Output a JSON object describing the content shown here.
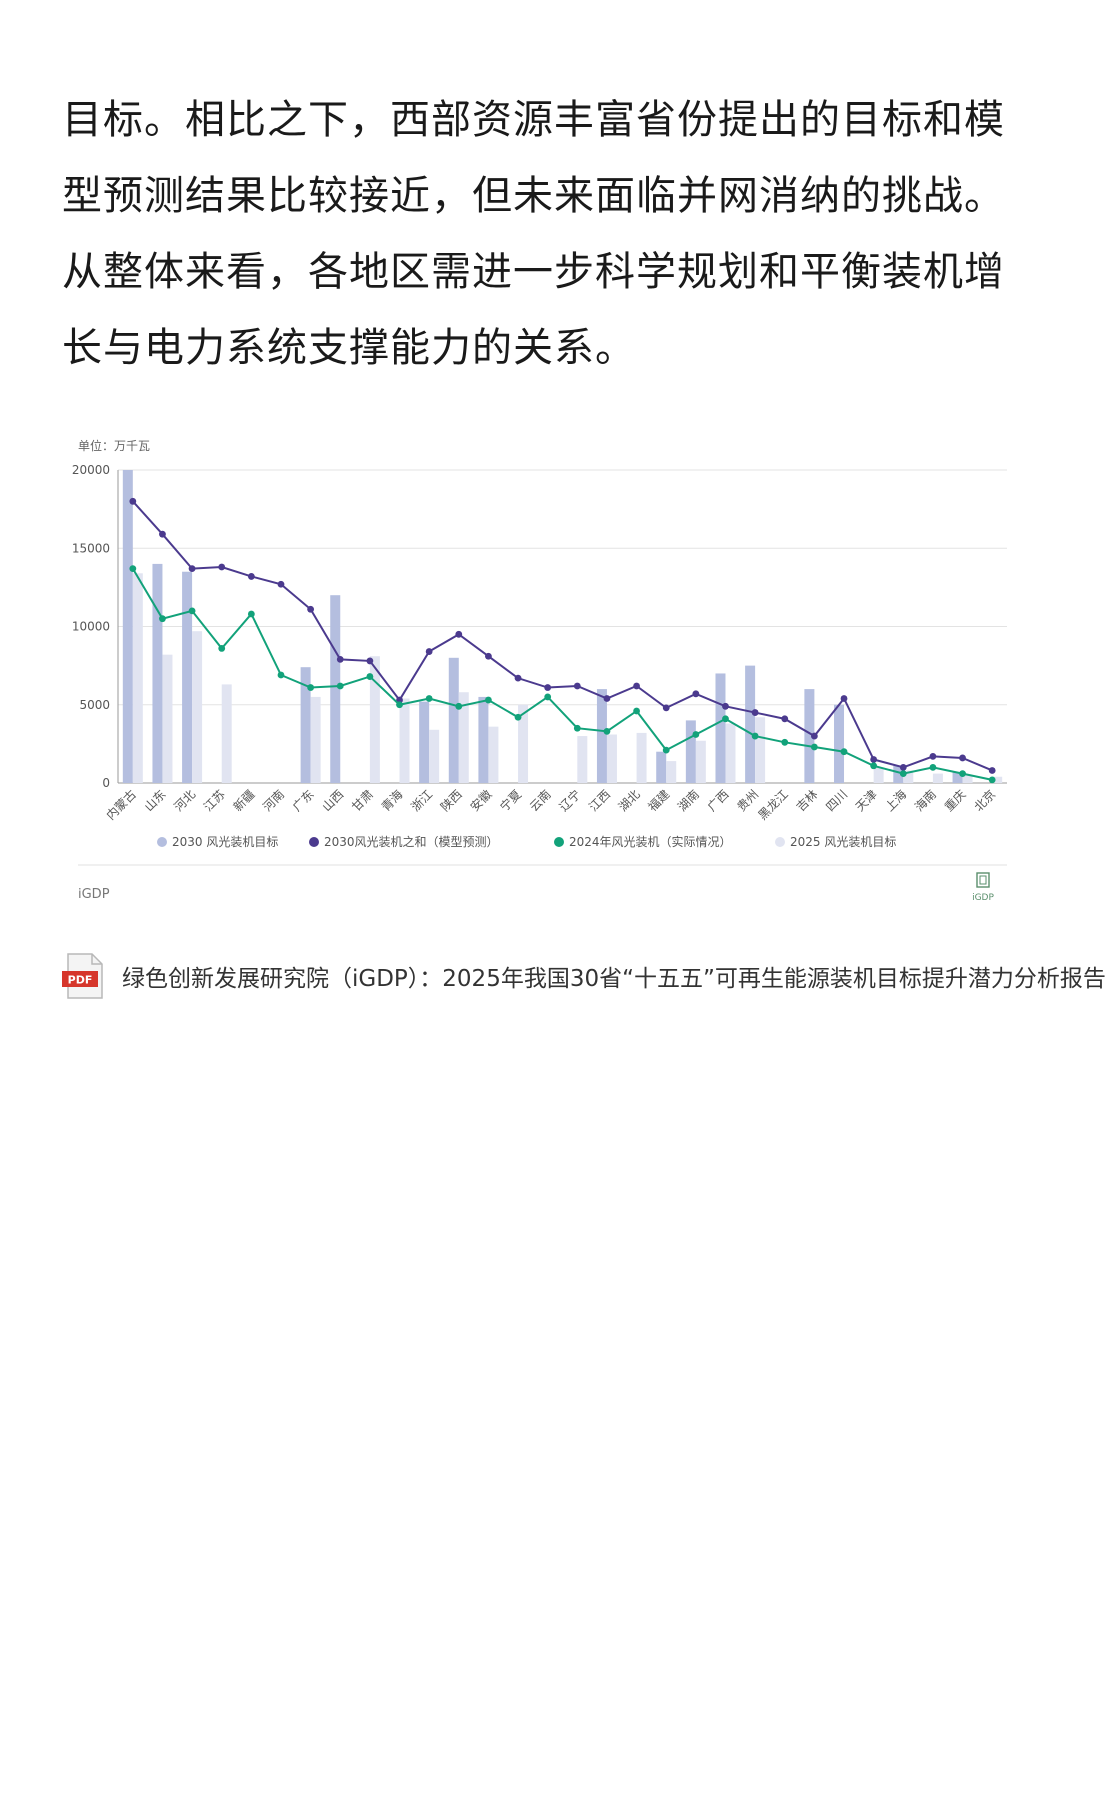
{
  "article": {
    "paragraph": "目标。相比之下，西部资源丰富省份提出的目标和模型预测结果比较接近，但未来面临并网消纳的挑战。从整体来看，各地区需进一步科学规划和平衡装机增长与电力系统支撑能力的关系。"
  },
  "chart_data": {
    "type": "bar",
    "unit_label": "单位：万千瓦",
    "ylim": [
      0,
      20000
    ],
    "yticks": [
      0,
      5000,
      10000,
      15000,
      20000
    ],
    "grid": true,
    "legend_position": "bottom",
    "categories": [
      "内蒙古",
      "山东",
      "河北",
      "江苏",
      "新疆",
      "河南",
      "广东",
      "山西",
      "甘肃",
      "青海",
      "浙江",
      "陕西",
      "安徽",
      "宁夏",
      "云南",
      "辽宁",
      "江西",
      "湖北",
      "福建",
      "湖南",
      "广西",
      "贵州",
      "黑龙江",
      "吉林",
      "四川",
      "天津",
      "上海",
      "海南",
      "重庆",
      "北京"
    ],
    "series": [
      {
        "name": "2030 风光装机目标",
        "kind": "bar",
        "color": "#b4bedf",
        "values": [
          20000,
          14000,
          13500,
          null,
          null,
          null,
          7400,
          12000,
          null,
          null,
          5200,
          8000,
          5500,
          null,
          null,
          null,
          6000,
          null,
          2000,
          4000,
          7000,
          7500,
          null,
          6000,
          5000,
          null,
          1100,
          null,
          700,
          null
        ]
      },
      {
        "name": "2030风光装机之和（模型预测）",
        "kind": "line",
        "color": "#4b3a8e",
        "values": [
          18000,
          15900,
          13700,
          13800,
          13200,
          12700,
          11100,
          7900,
          7800,
          5300,
          8400,
          9500,
          8100,
          6700,
          6100,
          6200,
          5400,
          6200,
          4800,
          5700,
          4900,
          4500,
          4100,
          3000,
          5400,
          1500,
          1000,
          1700,
          1600,
          800
        ]
      },
      {
        "name": "2024年风光装机（实际情况）",
        "kind": "line",
        "color": "#12a27a",
        "values": [
          13700,
          10500,
          11000,
          8600,
          10800,
          6900,
          6100,
          6200,
          6800,
          5000,
          5400,
          4900,
          5300,
          4200,
          5500,
          3500,
          3300,
          4600,
          2100,
          3100,
          4100,
          3000,
          2600,
          2300,
          2000,
          1100,
          600,
          1000,
          600,
          200
        ]
      },
      {
        "name": "2025 风光装机目标",
        "kind": "bar",
        "color": "#e1e4f1",
        "values": [
          13400,
          8200,
          9700,
          6300,
          null,
          null,
          5500,
          null,
          8100,
          5400,
          3400,
          5800,
          3600,
          5000,
          null,
          3000,
          3100,
          3200,
          1400,
          2700,
          3800,
          4200,
          null,
          null,
          null,
          1000,
          800,
          600,
          500,
          400
        ]
      }
    ]
  },
  "chart_footer": {
    "source_left": "iGDP",
    "logo_text": "iGDP"
  },
  "pdf": {
    "icon_text": "PDF",
    "title": "绿色创新发展研究院（iGDP）：2025年我国30省“十五五”可再生能源装机目标提升潜力分析报告"
  }
}
